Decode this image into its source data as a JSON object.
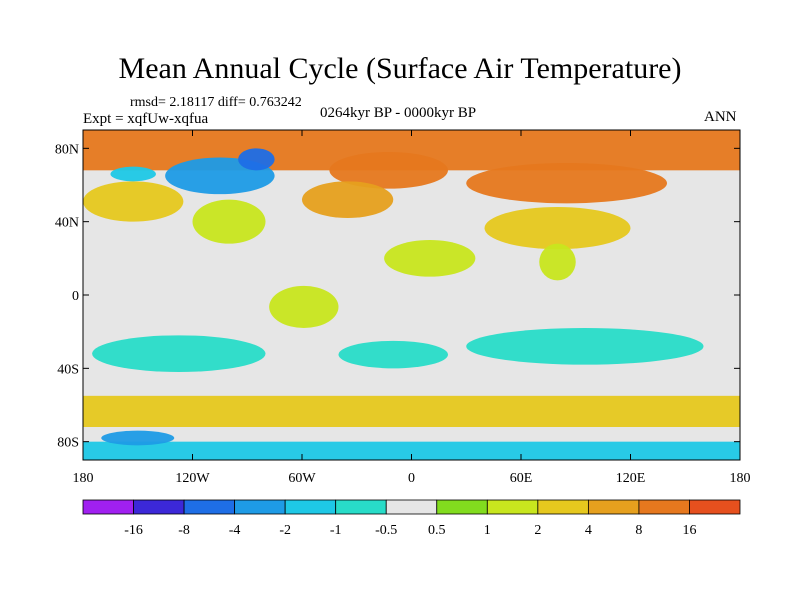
{
  "chart_data": {
    "type": "heatmap",
    "title": "Mean Annual Cycle (Surface Air Temperature)",
    "stats": "rmsd= 2.18117 diff= 0.763242",
    "experiment": "Expt = xqfUw-xqfua",
    "period": "0264kyr BP - 0000kyr BP",
    "season": "ANN",
    "x_range": [
      -180,
      180
    ],
    "y_range": [
      -90,
      90
    ],
    "x_ticks": [
      {
        "value": -180,
        "label": "180"
      },
      {
        "value": -120,
        "label": "120W"
      },
      {
        "value": -60,
        "label": "60W"
      },
      {
        "value": 0,
        "label": "0"
      },
      {
        "value": 60,
        "label": "60E"
      },
      {
        "value": 120,
        "label": "120E"
      },
      {
        "value": 180,
        "label": "180"
      }
    ],
    "y_ticks": [
      {
        "value": 80,
        "label": "80N"
      },
      {
        "value": 40,
        "label": "40N"
      },
      {
        "value": 0,
        "label": "0"
      },
      {
        "value": -40,
        "label": "40S"
      },
      {
        "value": -80,
        "label": "80S"
      }
    ],
    "colorbar": {
      "colors": [
        "#a020f0",
        "#3c28d8",
        "#1e6ee6",
        "#1e9be6",
        "#1ec8e6",
        "#28dcc8",
        "#e6e6e6",
        "#82dc1e",
        "#c8e61e",
        "#e6c81e",
        "#e6a01e",
        "#e6781e",
        "#e6501e"
      ],
      "labels": [
        "-16",
        "-8",
        "-4",
        "-2",
        "-1",
        "-0.5",
        "0.5",
        "1",
        "2",
        "4",
        "8",
        "16"
      ]
    },
    "regions": [
      {
        "name": "arctic-ocean-warming",
        "value": 8,
        "lon": [
          -180,
          180
        ],
        "lat": [
          68,
          90
        ]
      },
      {
        "name": "eurasia-warming",
        "value": 8,
        "lon": [
          30,
          140
        ],
        "lat": [
          50,
          72
        ]
      },
      {
        "name": "greenland-sea-warming",
        "value": 8,
        "lon": [
          -45,
          20
        ],
        "lat": [
          58,
          78
        ]
      },
      {
        "name": "north-atlantic-warming",
        "value": 4,
        "lon": [
          -60,
          -10
        ],
        "lat": [
          42,
          62
        ]
      },
      {
        "name": "north-pacific-warming",
        "value": 2,
        "lon": [
          -180,
          -125
        ],
        "lat": [
          40,
          62
        ]
      },
      {
        "name": "north-america-interior",
        "value": 1,
        "lon": [
          -120,
          -80
        ],
        "lat": [
          28,
          52
        ]
      },
      {
        "name": "canada-cooling",
        "value": -4,
        "lon": [
          -135,
          -75
        ],
        "lat": [
          55,
          75
        ]
      },
      {
        "name": "hudson-bay-cooling",
        "value": -8,
        "lon": [
          -95,
          -75
        ],
        "lat": [
          68,
          80
        ]
      },
      {
        "name": "alaska-cooling",
        "value": -2,
        "lon": [
          -165,
          -140
        ],
        "lat": [
          62,
          70
        ]
      },
      {
        "name": "central-asia-warming",
        "value": 2,
        "lon": [
          40,
          120
        ],
        "lat": [
          25,
          48
        ]
      },
      {
        "name": "sahara-warming",
        "value": 1,
        "lon": [
          -15,
          35
        ],
        "lat": [
          10,
          30
        ]
      },
      {
        "name": "india-warming",
        "value": 1,
        "lon": [
          70,
          90
        ],
        "lat": [
          8,
          28
        ]
      },
      {
        "name": "amazon-warming",
        "value": 1,
        "lon": [
          -78,
          -40
        ],
        "lat": [
          -18,
          5
        ]
      },
      {
        "name": "south-pacific-cooling",
        "value": -1,
        "lon": [
          -175,
          -80
        ],
        "lat": [
          -42,
          -22
        ]
      },
      {
        "name": "indian-ocean-cooling",
        "value": -1,
        "lon": [
          30,
          160
        ],
        "lat": [
          -38,
          -18
        ]
      },
      {
        "name": "south-atlantic-cooling",
        "value": -1,
        "lon": [
          -40,
          20
        ],
        "lat": [
          -40,
          -25
        ]
      },
      {
        "name": "southern-ocean-warming",
        "value": 2,
        "lon": [
          -180,
          180
        ],
        "lat": [
          -72,
          -55
        ]
      },
      {
        "name": "antarctica-cooling",
        "value": -2,
        "lon": [
          -180,
          180
        ],
        "lat": [
          -90,
          -80
        ]
      },
      {
        "name": "ross-sea-cooling",
        "value": -4,
        "lon": [
          -170,
          -130
        ],
        "lat": [
          -82,
          -74
        ]
      }
    ]
  }
}
